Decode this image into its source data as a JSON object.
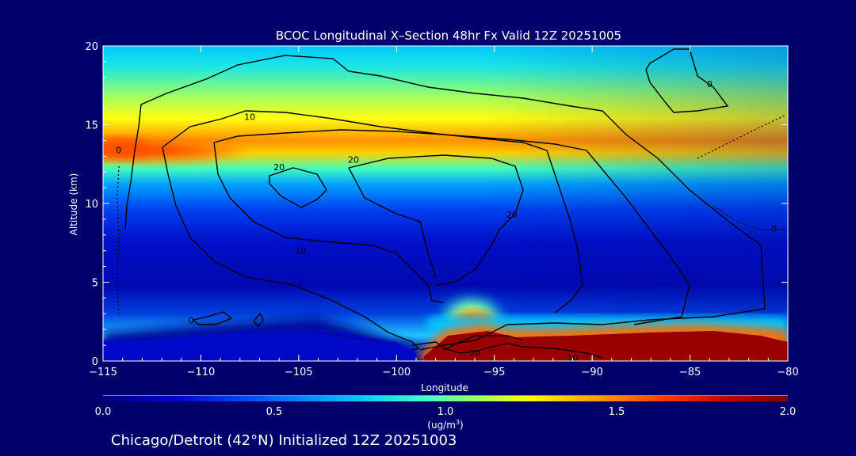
{
  "chart_data": {
    "type": "heatmap",
    "title": "BCOC Longitudinal X–Section 48hr  Fx Valid 12Z 20251005",
    "subtitle": "Chicago/Detroit (42°N) Initialized 12Z 20251003",
    "xlabel": "Longitude",
    "ylabel": "Altitude (km)",
    "xlim": [
      -115,
      -80
    ],
    "ylim": [
      0,
      20
    ],
    "x_ticks": [
      -115,
      -110,
      -105,
      -100,
      -95,
      -90,
      -85,
      -80
    ],
    "x_tick_labels": [
      "−115",
      "−110",
      "−105",
      "−100",
      "−95",
      "−90",
      "−85",
      "−80"
    ],
    "y_ticks": [
      0,
      5,
      10,
      15,
      20
    ],
    "y_tick_labels": [
      "0",
      "5",
      "10",
      "15",
      "20"
    ],
    "colorbar": {
      "min": 0.0,
      "max": 2.0,
      "ticks": [
        "0.0",
        "0.5",
        "1.0",
        "1.5",
        "2.0"
      ],
      "label": "(ug/m",
      "label_sup": "3",
      "label_end": ")",
      "colors": [
        "#00007a",
        "#0000d0",
        "#0050ff",
        "#00b8ff",
        "#40ffd0",
        "#b0ff50",
        "#ffff00",
        "#ffa000",
        "#ff3000",
        "#c00000",
        "#7a0000"
      ]
    },
    "contour_labels": [
      {
        "text": "0",
        "x": -114.2,
        "y": 13.4
      },
      {
        "text": "10",
        "x": -107.5,
        "y": 15.5
      },
      {
        "text": "20",
        "x": -106.0,
        "y": 12.3
      },
      {
        "text": "20",
        "x": -102.2,
        "y": 12.8
      },
      {
        "text": "20",
        "x": -94.1,
        "y": 9.3
      },
      {
        "text": "10",
        "x": -104.9,
        "y": 7.0
      },
      {
        "text": "0",
        "x": -110.5,
        "y": 2.6
      },
      {
        "text": "20",
        "x": -96.0,
        "y": 0.5
      },
      {
        "text": "10",
        "x": -91.0,
        "y": 0.2
      },
      {
        "text": "0",
        "x": -84.0,
        "y": 17.6
      },
      {
        "text": "0",
        "x": -80.7,
        "y": 8.4
      }
    ]
  }
}
